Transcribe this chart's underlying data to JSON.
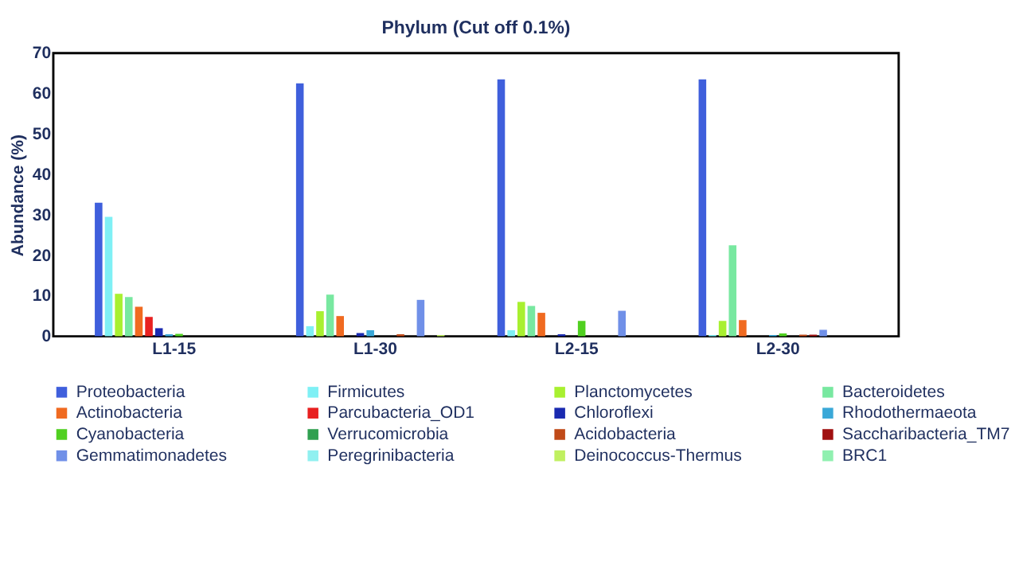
{
  "chart_data": {
    "type": "bar",
    "title": "Phylum (Cut off 0.1%)",
    "ylabel": "Abundance (%)",
    "categories": [
      "L1-15",
      "L1-30",
      "L2-15",
      "L2-30"
    ],
    "ylim": [
      0,
      70
    ],
    "yticks": [
      0,
      10,
      20,
      30,
      40,
      50,
      60,
      70
    ],
    "grid": false,
    "legend": "bottom",
    "series": [
      {
        "name": "Proteobacteria",
        "color": "#3f5fdc",
        "values": [
          33,
          62.5,
          63.5,
          63.5
        ]
      },
      {
        "name": "Firmicutes",
        "color": "#7ff0f5",
        "values": [
          29.5,
          2.5,
          1.5,
          0.3
        ]
      },
      {
        "name": "Planctomycetes",
        "color": "#a8f030",
        "values": [
          10.5,
          6.2,
          8.5,
          3.8
        ]
      },
      {
        "name": "Bacteroidetes",
        "color": "#78e8a0",
        "values": [
          9.7,
          10.3,
          7.5,
          22.5
        ]
      },
      {
        "name": "Actinobacteria",
        "color": "#f06a20",
        "values": [
          7.3,
          5,
          5.8,
          4
        ]
      },
      {
        "name": "Parcubacteria_OD1",
        "color": "#e82020",
        "values": [
          4.8,
          0,
          0,
          0
        ]
      },
      {
        "name": "Chloroflexi",
        "color": "#1a2ab0",
        "values": [
          2,
          0.8,
          0.5,
          0
        ]
      },
      {
        "name": "Rhodothermaeota",
        "color": "#3aa8d8",
        "values": [
          0.5,
          1.5,
          0,
          0.3
        ]
      },
      {
        "name": "Cyanobacteria",
        "color": "#50d020",
        "values": [
          0.6,
          0,
          3.8,
          0.7
        ]
      },
      {
        "name": "Verrucomicrobia",
        "color": "#30a050",
        "values": [
          0,
          0,
          0,
          0
        ]
      },
      {
        "name": "Acidobacteria",
        "color": "#c04a18",
        "values": [
          0,
          0.5,
          0,
          0.4
        ]
      },
      {
        "name": "Saccharibacteria_TM7",
        "color": "#a01010",
        "values": [
          0,
          0,
          0,
          0.4
        ]
      },
      {
        "name": "Gemmatimonadetes",
        "color": "#7090e8",
        "values": [
          0,
          9,
          6.3,
          1.6
        ]
      },
      {
        "name": "Peregrinibacteria",
        "color": "#90f0f0",
        "values": [
          0,
          0,
          0,
          0
        ]
      },
      {
        "name": "Deinococcus-Thermus",
        "color": "#c0f060",
        "values": [
          0,
          0.3,
          0,
          0
        ]
      },
      {
        "name": "BRC1",
        "color": "#90f0b0",
        "values": [
          0,
          0,
          0,
          0
        ]
      }
    ]
  }
}
